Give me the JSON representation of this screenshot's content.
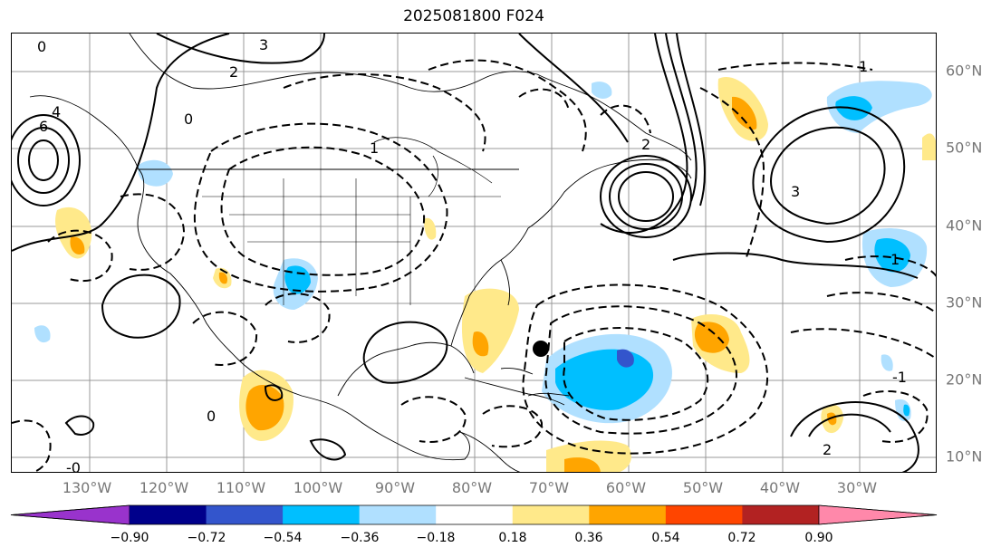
{
  "title": "2025081800 F024",
  "latitude_labels": [
    "60°N",
    "50°N",
    "40°N",
    "30°N",
    "20°N",
    "10°N"
  ],
  "longitude_labels": [
    "130°W",
    "120°W",
    "110°W",
    "100°W",
    "90°W",
    "80°W",
    "70°W",
    "60°W",
    "50°W",
    "40°W",
    "30°W"
  ],
  "colorbar": {
    "ticks": [
      "−0.90",
      "−0.72",
      "−0.54",
      "−0.36",
      "−0.18",
      "0.18",
      "0.36",
      "0.54",
      "0.72",
      "0.90"
    ],
    "colors": [
      "#9933cc",
      "#00008b",
      "#3355cc",
      "#00bfff",
      "#b0e0ff",
      "#ffffff",
      "#ffe98a",
      "#ffa500",
      "#ff4500",
      "#b22222",
      "#ff88aa"
    ]
  },
  "contour_labels": [
    "3",
    "2",
    "0",
    "6",
    "4",
    "1",
    "2",
    "0",
    "3",
    "-0",
    "1",
    "-1",
    "0",
    "2",
    "1"
  ],
  "storm_marker": {
    "lon": -70,
    "lat": 24
  },
  "shading_colors": {
    "positive_light": "#ffe98a",
    "positive_mid": "#ffa500",
    "negative_light": "#b0e0ff",
    "negative_mid": "#00bfff",
    "negative_deep": "#3355cc"
  }
}
